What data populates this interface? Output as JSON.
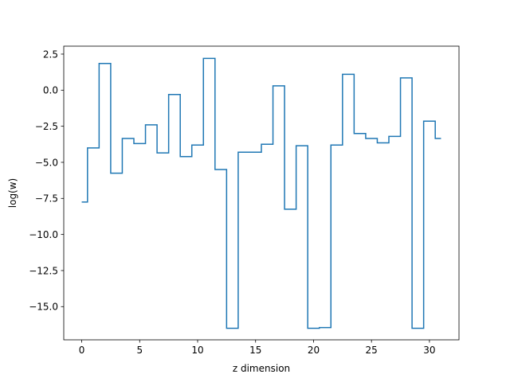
{
  "chart_data": {
    "type": "line",
    "drawstyle": "steps-mid",
    "title": "",
    "xlabel": "z dimension",
    "ylabel": "log(w)",
    "xlim": [
      -1.55,
      32.55
    ],
    "ylim": [
      -17.3,
      3.05
    ],
    "grid": false,
    "line_color": "#1f77b4",
    "xticks": [
      0,
      5,
      10,
      15,
      20,
      25,
      30
    ],
    "yticks": [
      2.5,
      0.0,
      -2.5,
      -5.0,
      -7.5,
      -10.0,
      -12.5,
      -15.0
    ],
    "xtick_labels": [
      "0",
      "5",
      "10",
      "15",
      "20",
      "25",
      "30"
    ],
    "ytick_labels": [
      "2.5",
      "0.0",
      "−2.5",
      "−5.0",
      "−7.5",
      "−10.0",
      "−12.5",
      "−15.0"
    ],
    "series": [
      {
        "x": [
          0,
          1,
          2,
          3,
          4,
          5,
          6,
          7,
          8,
          9,
          10,
          11,
          12,
          13,
          14,
          15,
          16,
          17,
          18,
          19,
          20,
          21,
          22,
          23,
          24,
          25,
          26,
          27,
          28,
          29,
          30,
          31
        ],
        "values": [
          -7.75,
          -4.0,
          1.85,
          -5.75,
          -3.35,
          -3.7,
          -2.4,
          -4.35,
          -0.3,
          -4.6,
          -3.8,
          2.2,
          -5.5,
          -16.5,
          -4.3,
          -4.3,
          -3.75,
          0.3,
          -8.25,
          -3.85,
          -16.5,
          -16.45,
          -3.8,
          1.1,
          -3.0,
          -3.35,
          -3.65,
          -3.2,
          0.85,
          -16.5,
          -2.15,
          -3.35
        ]
      }
    ]
  }
}
